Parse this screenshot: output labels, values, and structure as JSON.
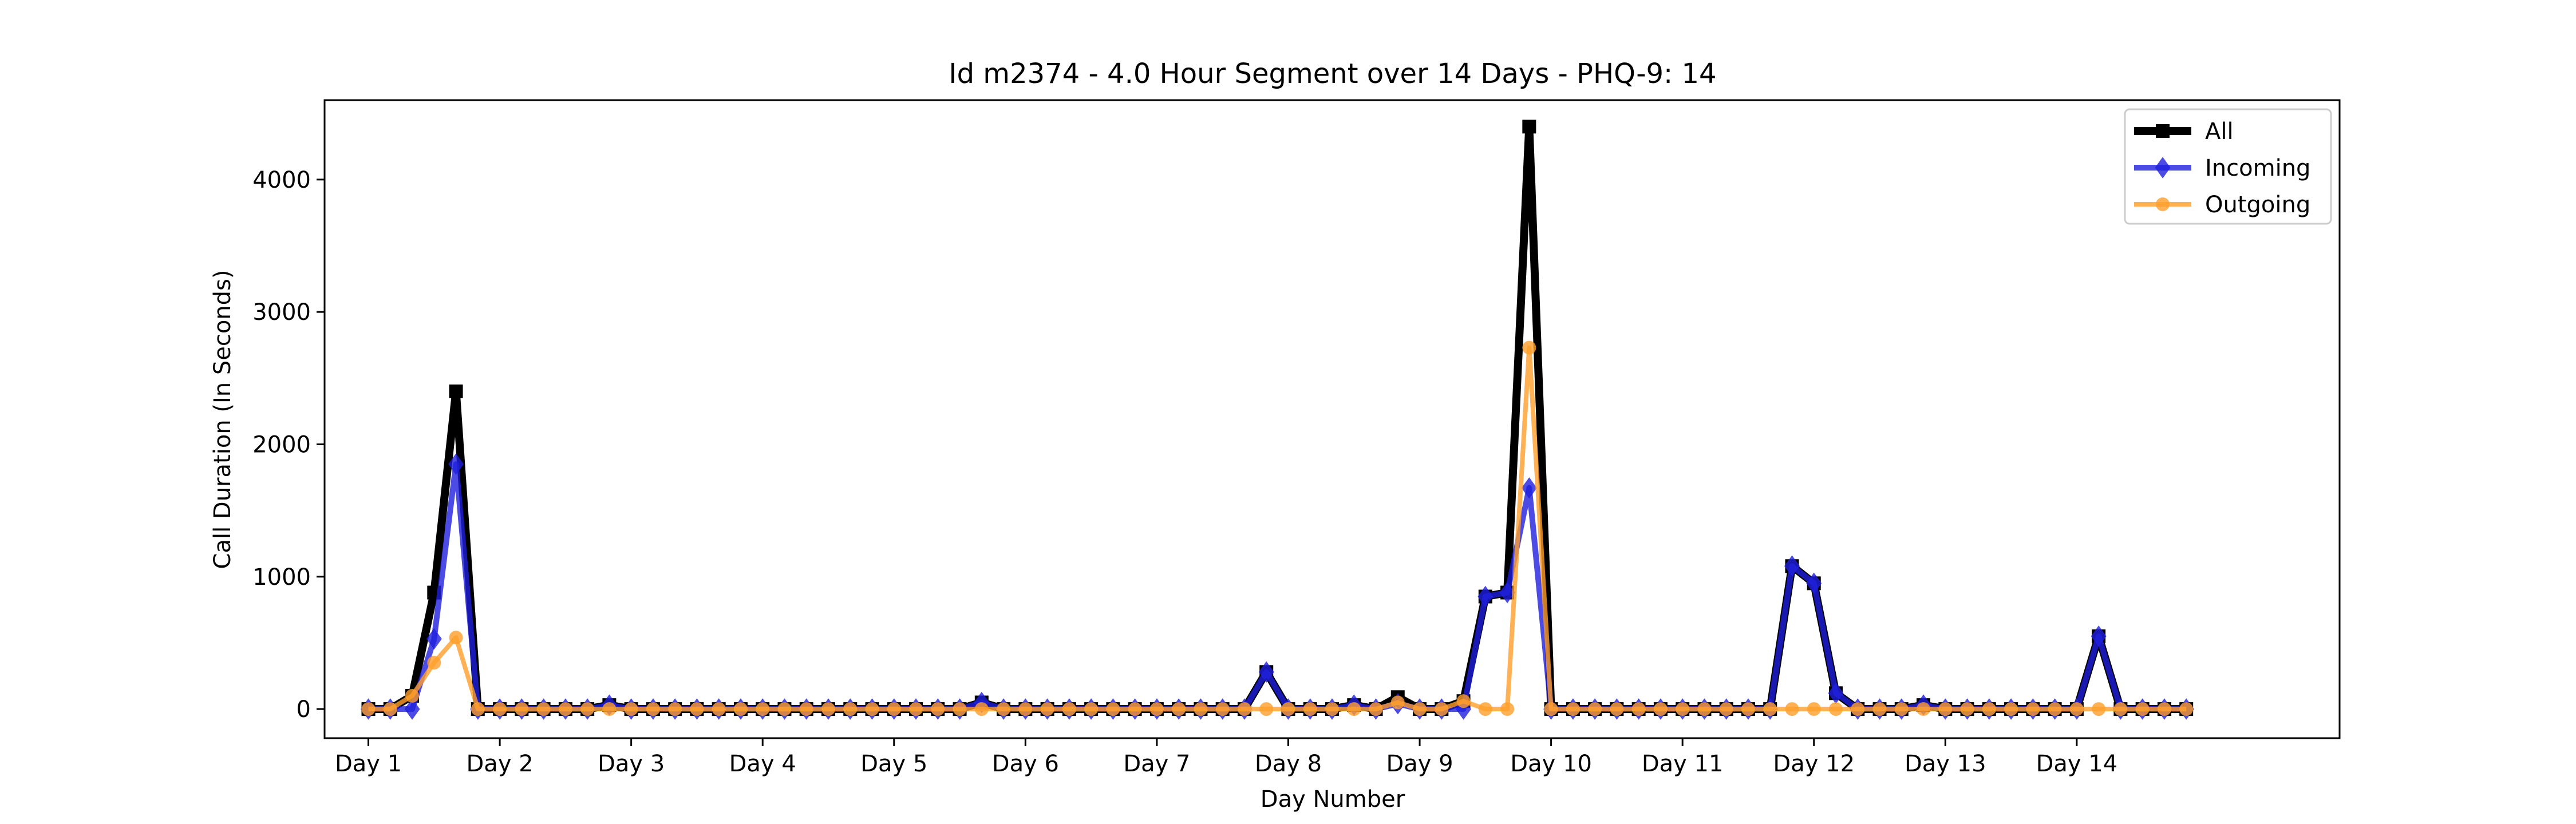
{
  "chart_data": {
    "type": "line",
    "title": "Id m2374 - 4.0 Hour Segment over 14 Days - PHQ-9: 14",
    "xlabel": "Day Number",
    "ylabel": "Call Duration (In Seconds)",
    "ylim": [
      -220,
      4600
    ],
    "yticks": [
      0,
      1000,
      2000,
      3000,
      4000
    ],
    "xlim": [
      -2,
      90
    ],
    "xticks": [
      0,
      6,
      12,
      18,
      24,
      30,
      36,
      42,
      48,
      54,
      60,
      66,
      72,
      78
    ],
    "xtick_labels": [
      "Day 1",
      "Day 2",
      "Day 3",
      "Day 4",
      "Day 5",
      "Day 6",
      "Day 7",
      "Day 8",
      "Day 9",
      "Day 10",
      "Day 11",
      "Day 12",
      "Day 13",
      "Day 14"
    ],
    "grid": false,
    "legend": {
      "position": "top-right",
      "entries": [
        "All",
        "Incoming",
        "Outgoing"
      ]
    },
    "x": [
      0,
      1,
      2,
      3,
      4,
      5,
      6,
      7,
      8,
      9,
      10,
      11,
      12,
      13,
      14,
      15,
      16,
      17,
      18,
      19,
      20,
      21,
      22,
      23,
      24,
      25,
      26,
      27,
      28,
      29,
      30,
      31,
      32,
      33,
      34,
      35,
      36,
      37,
      38,
      39,
      40,
      41,
      42,
      43,
      44,
      45,
      46,
      47,
      48,
      49,
      50,
      51,
      52,
      53,
      54,
      55,
      56,
      57,
      58,
      59,
      60,
      61,
      62,
      63,
      64,
      65,
      66,
      67,
      68,
      69,
      70,
      71,
      72,
      73,
      74,
      75,
      76,
      77,
      78,
      79,
      80,
      81,
      82,
      83
    ],
    "series": [
      {
        "name": "All",
        "color": "#000000",
        "marker": "square",
        "values": [
          0,
          0,
          100,
          880,
          2400,
          0,
          0,
          0,
          0,
          0,
          0,
          30,
          0,
          0,
          0,
          0,
          0,
          0,
          0,
          0,
          0,
          0,
          0,
          0,
          0,
          0,
          0,
          0,
          50,
          0,
          0,
          0,
          0,
          0,
          0,
          0,
          0,
          0,
          0,
          0,
          0,
          280,
          0,
          0,
          0,
          30,
          0,
          90,
          0,
          0,
          60,
          850,
          880,
          4400,
          0,
          0,
          0,
          0,
          0,
          0,
          0,
          0,
          0,
          0,
          0,
          1080,
          950,
          120,
          0,
          0,
          0,
          30,
          0,
          0,
          0,
          0,
          0,
          0,
          0,
          550,
          0,
          0,
          0,
          0
        ]
      },
      {
        "name": "Incoming",
        "color": "#1f1fdd",
        "marker": "diamond",
        "values": [
          0,
          0,
          0,
          530,
          1850,
          0,
          0,
          0,
          0,
          0,
          0,
          30,
          0,
          0,
          0,
          0,
          0,
          0,
          0,
          0,
          0,
          0,
          0,
          0,
          0,
          0,
          0,
          0,
          50,
          0,
          0,
          0,
          0,
          0,
          0,
          0,
          0,
          0,
          0,
          0,
          0,
          280,
          0,
          0,
          0,
          30,
          0,
          40,
          0,
          0,
          0,
          850,
          880,
          1670,
          0,
          0,
          0,
          0,
          0,
          0,
          0,
          0,
          0,
          0,
          0,
          1080,
          950,
          120,
          0,
          0,
          0,
          30,
          0,
          0,
          0,
          0,
          0,
          0,
          0,
          550,
          0,
          0,
          0,
          0
        ]
      },
      {
        "name": "Outgoing",
        "color": "#ff9f2a",
        "marker": "circle",
        "values": [
          0,
          0,
          100,
          350,
          540,
          0,
          0,
          0,
          0,
          0,
          0,
          0,
          0,
          0,
          0,
          0,
          0,
          0,
          0,
          0,
          0,
          0,
          0,
          0,
          0,
          0,
          0,
          0,
          0,
          0,
          0,
          0,
          0,
          0,
          0,
          0,
          0,
          0,
          0,
          0,
          0,
          0,
          0,
          0,
          0,
          0,
          0,
          50,
          0,
          0,
          60,
          0,
          0,
          2730,
          0,
          0,
          0,
          0,
          0,
          0,
          0,
          0,
          0,
          0,
          0,
          0,
          0,
          0,
          0,
          0,
          0,
          0,
          0,
          0,
          0,
          0,
          0,
          0,
          0,
          0,
          0,
          0,
          0,
          0
        ]
      }
    ]
  }
}
